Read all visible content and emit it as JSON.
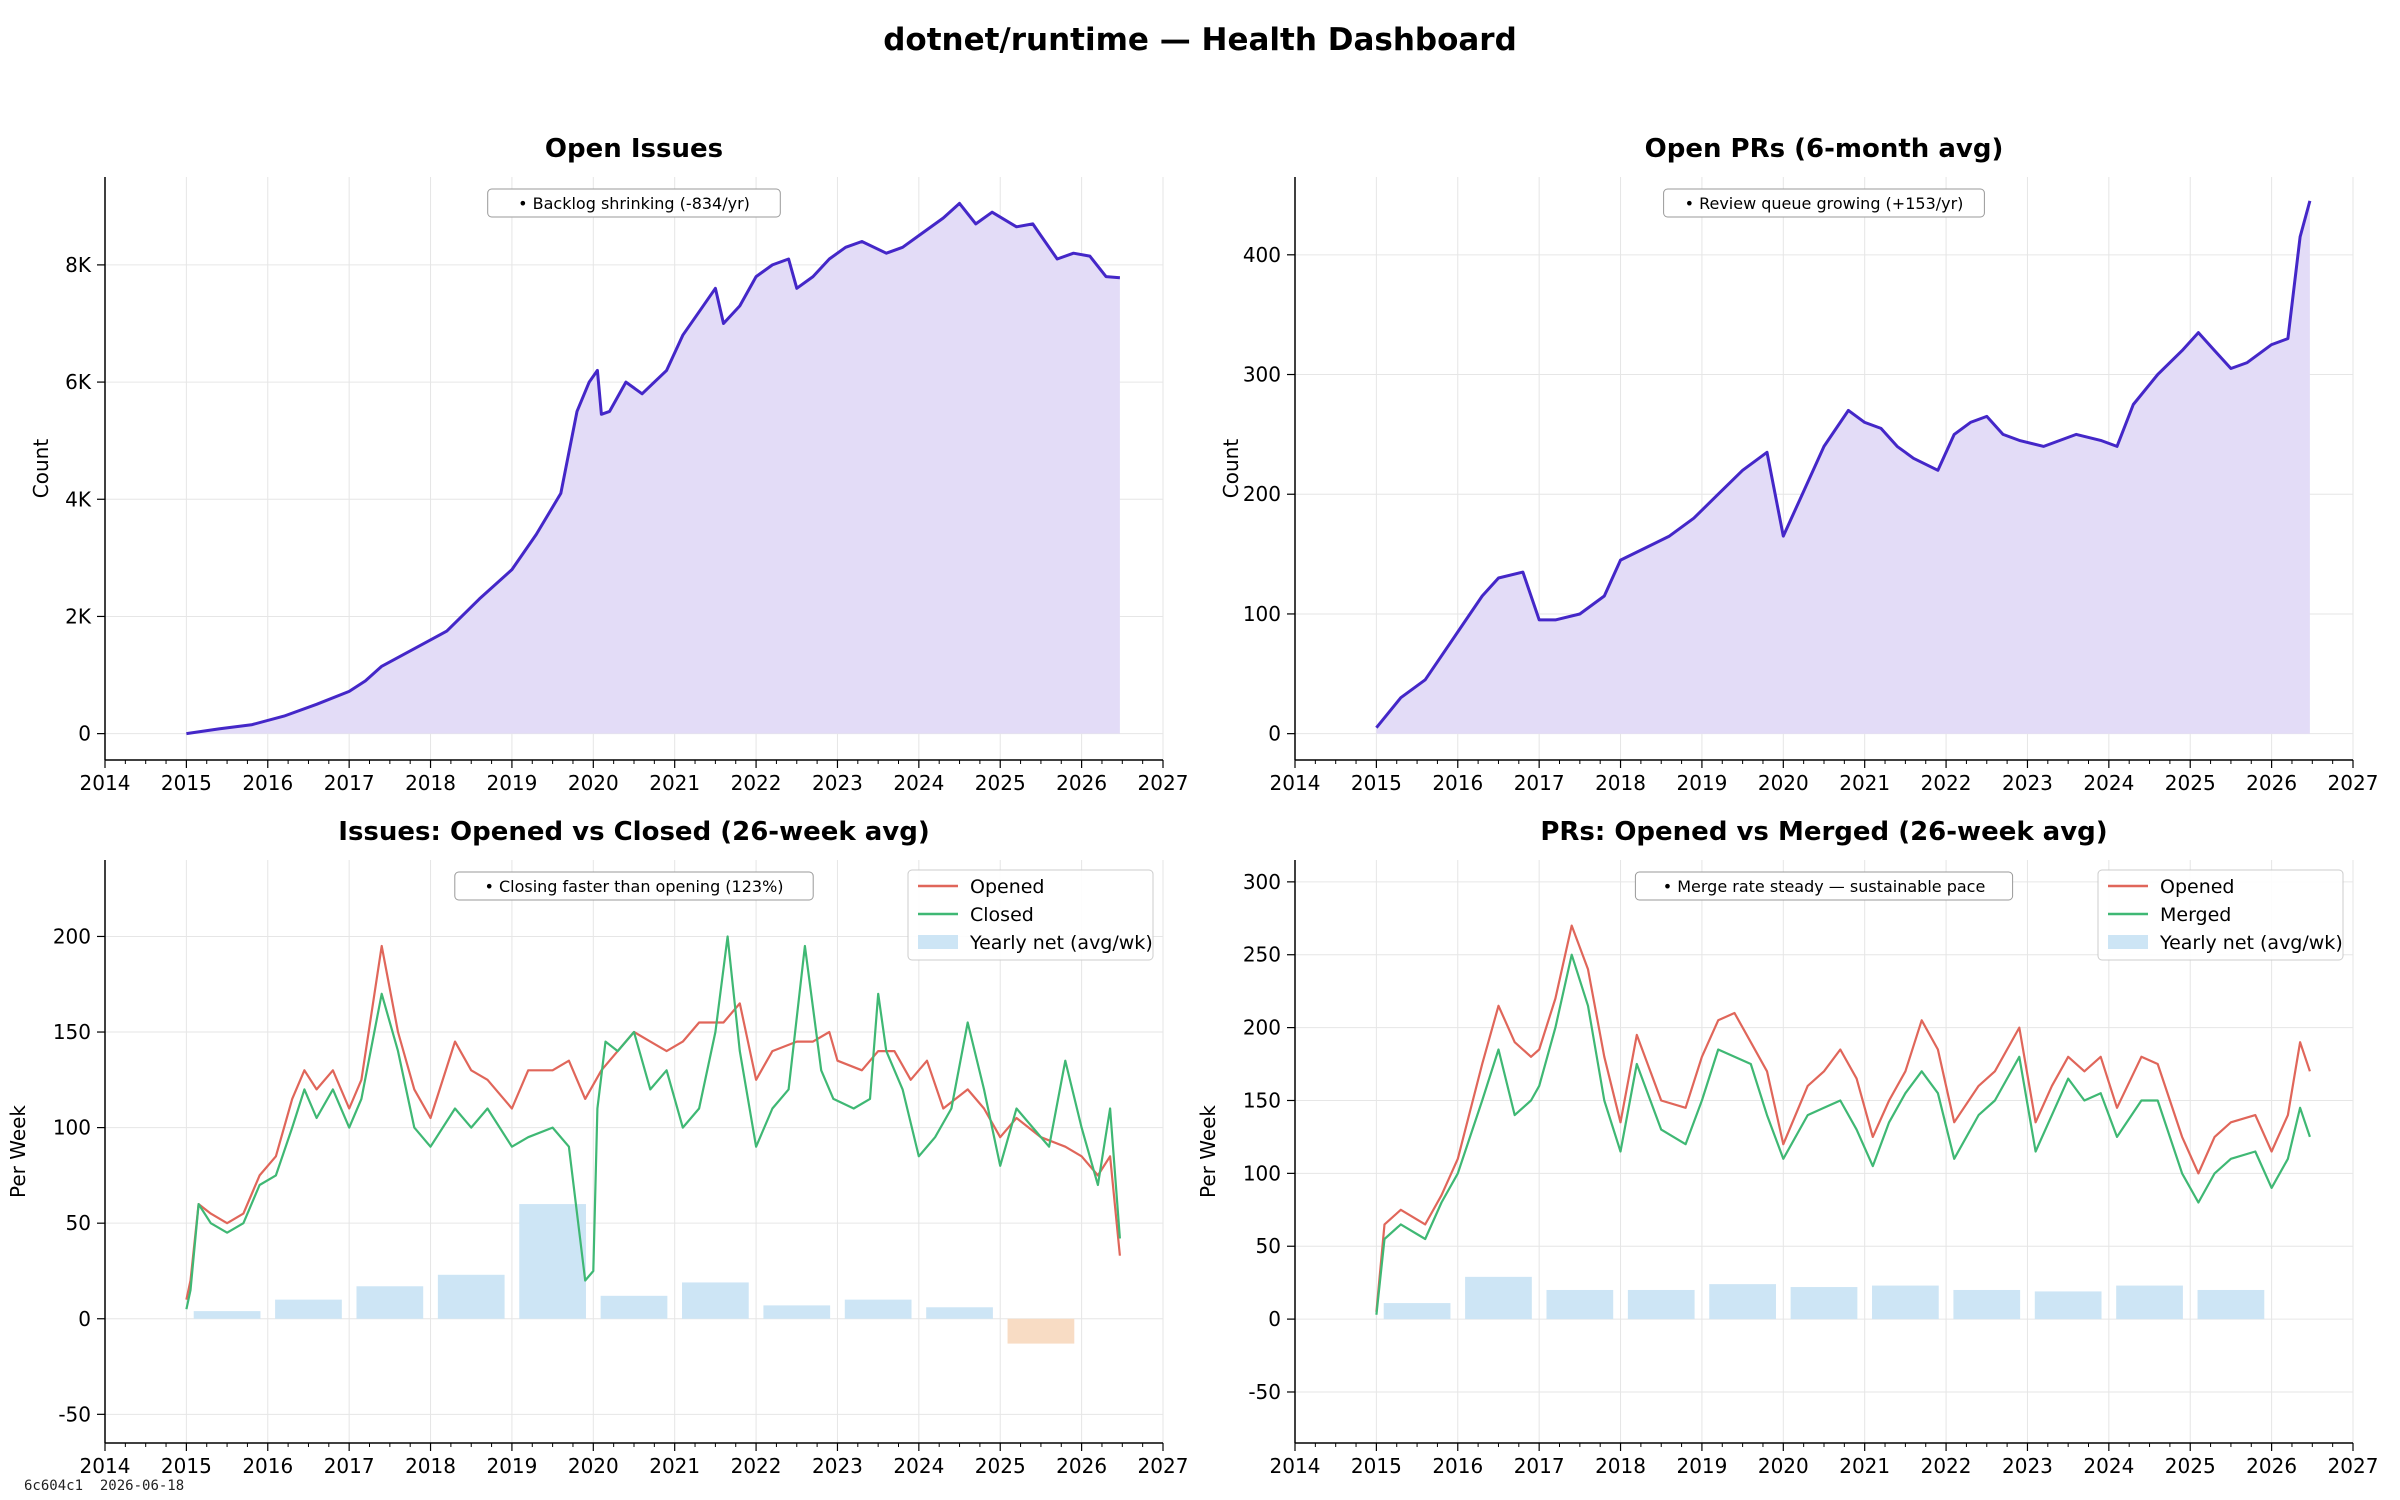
{
  "dashboard": {
    "title": "dotnet/runtime — Health Dashboard",
    "footer_hash": "6c604c1",
    "footer_date": "2026-06-18"
  },
  "colors": {
    "area_line": "#4427c8",
    "area_fill": "#e3dcf7",
    "opened": "#e0665a",
    "closed": "#3fb874",
    "bar_pos": "#cde5f5",
    "bar_neg": "#f8dcc4",
    "grid": "#e6e6e6"
  },
  "chart_data": [
    {
      "id": "open-issues",
      "type": "area",
      "title": "Open Issues",
      "xlabel": "",
      "ylabel": "Count",
      "xlim": [
        2014,
        2027
      ],
      "ylim": [
        -450,
        9500
      ],
      "xticks": [
        2014,
        2015,
        2016,
        2017,
        2018,
        2019,
        2020,
        2021,
        2022,
        2023,
        2024,
        2025,
        2026,
        2027
      ],
      "yticks": [
        {
          "v": 0,
          "label": "0"
        },
        {
          "v": 2000,
          "label": "2K"
        },
        {
          "v": 4000,
          "label": "4K"
        },
        {
          "v": 6000,
          "label": "6K"
        },
        {
          "v": 8000,
          "label": "8K"
        }
      ],
      "grid": true,
      "annotation": "• Backlog shrinking (-834/yr)",
      "series": [
        {
          "x": [
            2015.0,
            2015.4,
            2015.8,
            2016.2,
            2016.6,
            2017.0,
            2017.2,
            2017.4,
            2017.8,
            2018.2,
            2018.6,
            2019.0,
            2019.3,
            2019.6,
            2019.8,
            2019.95,
            2020.05,
            2020.1,
            2020.2,
            2020.4,
            2020.6,
            2020.9,
            2021.1,
            2021.3,
            2021.5,
            2021.6,
            2021.8,
            2022.0,
            2022.2,
            2022.4,
            2022.5,
            2022.7,
            2022.9,
            2023.1,
            2023.3,
            2023.6,
            2023.8,
            2024.0,
            2024.3,
            2024.5,
            2024.7,
            2024.9,
            2025.2,
            2025.4,
            2025.5,
            2025.7,
            2025.9,
            2026.1,
            2026.3,
            2026.47
          ],
          "y": [
            0,
            80,
            150,
            300,
            500,
            720,
            900,
            1150,
            1450,
            1750,
            2300,
            2800,
            3400,
            4100,
            5500,
            6000,
            6200,
            5450,
            5500,
            6000,
            5800,
            6200,
            6800,
            7200,
            7600,
            7000,
            7300,
            7800,
            8000,
            8100,
            7600,
            7800,
            8100,
            8300,
            8400,
            8200,
            8300,
            8500,
            8800,
            9050,
            8700,
            8900,
            8650,
            8700,
            8500,
            8100,
            8200,
            8150,
            7800,
            7780
          ]
        }
      ]
    },
    {
      "id": "open-prs",
      "type": "area",
      "title": "Open PRs (6-month avg)",
      "xlabel": "",
      "ylabel": "Count",
      "xlim": [
        2014,
        2027
      ],
      "ylim": [
        -22,
        465
      ],
      "xticks": [
        2014,
        2015,
        2016,
        2017,
        2018,
        2019,
        2020,
        2021,
        2022,
        2023,
        2024,
        2025,
        2026,
        2027
      ],
      "yticks": [
        {
          "v": 0,
          "label": "0"
        },
        {
          "v": 100,
          "label": "100"
        },
        {
          "v": 200,
          "label": "200"
        },
        {
          "v": 300,
          "label": "300"
        },
        {
          "v": 400,
          "label": "400"
        }
      ],
      "grid": true,
      "annotation": "• Review queue growing (+153/yr)",
      "series": [
        {
          "x": [
            2015.0,
            2015.3,
            2015.6,
            2016.0,
            2016.3,
            2016.5,
            2016.8,
            2017.0,
            2017.2,
            2017.5,
            2017.8,
            2018.0,
            2018.3,
            2018.6,
            2018.9,
            2019.2,
            2019.5,
            2019.8,
            2020.0,
            2020.2,
            2020.5,
            2020.8,
            2021.0,
            2021.2,
            2021.4,
            2021.6,
            2021.9,
            2022.1,
            2022.3,
            2022.5,
            2022.7,
            2022.9,
            2023.2,
            2023.4,
            2023.6,
            2023.9,
            2024.1,
            2024.3,
            2024.6,
            2024.9,
            2025.1,
            2025.3,
            2025.5,
            2025.7,
            2026.0,
            2026.2,
            2026.35,
            2026.47
          ],
          "y": [
            5,
            30,
            45,
            85,
            115,
            130,
            135,
            95,
            95,
            100,
            115,
            145,
            155,
            165,
            180,
            200,
            220,
            235,
            165,
            195,
            240,
            270,
            260,
            255,
            240,
            230,
            220,
            250,
            260,
            265,
            250,
            245,
            240,
            245,
            250,
            245,
            240,
            275,
            300,
            320,
            335,
            320,
            305,
            310,
            325,
            330,
            415,
            445
          ]
        }
      ]
    },
    {
      "id": "issues-opened-closed",
      "type": "line",
      "title": "Issues: Opened vs Closed (26-week avg)",
      "xlabel": "",
      "ylabel": "Per Week",
      "xlim": [
        2014,
        2027
      ],
      "ylim": [
        -65,
        240
      ],
      "xticks": [
        2014,
        2015,
        2016,
        2017,
        2018,
        2019,
        2020,
        2021,
        2022,
        2023,
        2024,
        2025,
        2026,
        2027
      ],
      "yticks": [
        {
          "v": -50,
          "label": "-50"
        },
        {
          "v": 0,
          "label": "0"
        },
        {
          "v": 50,
          "label": "50"
        },
        {
          "v": 100,
          "label": "100"
        },
        {
          "v": 150,
          "label": "150"
        },
        {
          "v": 200,
          "label": "200"
        }
      ],
      "grid": true,
      "legend": "top-right",
      "annotation": "• Closing faster than opening (123%)",
      "series": [
        {
          "name": "Opened",
          "kind": "line",
          "x": [
            2015.0,
            2015.05,
            2015.15,
            2015.3,
            2015.5,
            2015.7,
            2015.9,
            2016.1,
            2016.3,
            2016.45,
            2016.6,
            2016.8,
            2017.0,
            2017.15,
            2017.4,
            2017.6,
            2017.8,
            2018.0,
            2018.3,
            2018.5,
            2018.7,
            2019.0,
            2019.2,
            2019.5,
            2019.7,
            2019.9,
            2020.1,
            2020.3,
            2020.5,
            2020.7,
            2020.9,
            2021.1,
            2021.3,
            2021.6,
            2021.8,
            2022.0,
            2022.2,
            2022.5,
            2022.7,
            2022.9,
            2023.0,
            2023.3,
            2023.5,
            2023.7,
            2023.9,
            2024.1,
            2024.3,
            2024.6,
            2024.8,
            2025.0,
            2025.2,
            2025.5,
            2025.8,
            2026.0,
            2026.2,
            2026.35,
            2026.47
          ],
          "y": [
            10,
            20,
            60,
            55,
            50,
            55,
            75,
            85,
            115,
            130,
            120,
            130,
            110,
            125,
            195,
            150,
            120,
            105,
            145,
            130,
            125,
            110,
            130,
            130,
            135,
            115,
            130,
            140,
            150,
            145,
            140,
            145,
            155,
            155,
            165,
            125,
            140,
            145,
            145,
            150,
            135,
            130,
            140,
            140,
            125,
            135,
            110,
            120,
            110,
            95,
            105,
            95,
            90,
            85,
            75,
            85,
            33
          ]
        },
        {
          "name": "Closed",
          "kind": "line",
          "x": [
            2015.0,
            2015.05,
            2015.15,
            2015.3,
            2015.5,
            2015.7,
            2015.9,
            2016.1,
            2016.3,
            2016.45,
            2016.6,
            2016.8,
            2017.0,
            2017.15,
            2017.4,
            2017.6,
            2017.8,
            2018.0,
            2018.3,
            2018.5,
            2018.7,
            2019.0,
            2019.2,
            2019.5,
            2019.7,
            2019.9,
            2020.0,
            2020.05,
            2020.15,
            2020.3,
            2020.5,
            2020.7,
            2020.9,
            2021.1,
            2021.3,
            2021.5,
            2021.65,
            2021.8,
            2022.0,
            2022.2,
            2022.4,
            2022.6,
            2022.8,
            2022.95,
            2023.2,
            2023.4,
            2023.5,
            2023.6,
            2023.8,
            2024.0,
            2024.2,
            2024.4,
            2024.6,
            2024.8,
            2025.0,
            2025.2,
            2025.4,
            2025.6,
            2025.8,
            2026.0,
            2026.2,
            2026.35,
            2026.47
          ],
          "y": [
            5,
            15,
            60,
            50,
            45,
            50,
            70,
            75,
            100,
            120,
            105,
            120,
            100,
            115,
            170,
            140,
            100,
            90,
            110,
            100,
            110,
            90,
            95,
            100,
            90,
            20,
            25,
            110,
            145,
            140,
            150,
            120,
            130,
            100,
            110,
            150,
            200,
            140,
            90,
            110,
            120,
            195,
            130,
            115,
            110,
            115,
            170,
            140,
            120,
            85,
            95,
            110,
            155,
            120,
            80,
            110,
            100,
            90,
            135,
            100,
            70,
            110,
            42
          ]
        },
        {
          "name": "Yearly net (avg/wk)",
          "kind": "bar",
          "x": [
            2015.5,
            2016.5,
            2017.5,
            2018.5,
            2019.5,
            2020.5,
            2021.5,
            2022.5,
            2023.5,
            2024.5,
            2025.5
          ],
          "y": [
            4,
            10,
            17,
            23,
            60,
            12,
            19,
            7,
            10,
            6,
            -13
          ]
        }
      ]
    },
    {
      "id": "prs-opened-merged",
      "type": "line",
      "title": "PRs: Opened vs Merged (26-week avg)",
      "xlabel": "",
      "ylabel": "Per Week",
      "xlim": [
        2014,
        2027
      ],
      "ylim": [
        -85,
        315
      ],
      "xticks": [
        2014,
        2015,
        2016,
        2017,
        2018,
        2019,
        2020,
        2021,
        2022,
        2023,
        2024,
        2025,
        2026,
        2027
      ],
      "yticks": [
        {
          "v": -50,
          "label": "-50"
        },
        {
          "v": 0,
          "label": "0"
        },
        {
          "v": 50,
          "label": "50"
        },
        {
          "v": 100,
          "label": "100"
        },
        {
          "v": 150,
          "label": "150"
        },
        {
          "v": 200,
          "label": "200"
        },
        {
          "v": 250,
          "label": "250"
        },
        {
          "v": 300,
          "label": "300"
        }
      ],
      "grid": true,
      "legend": "top-right",
      "annotation": "• Merge rate steady — sustainable pace",
      "series": [
        {
          "name": "Opened",
          "kind": "line",
          "x": [
            2015.0,
            2015.1,
            2015.3,
            2015.6,
            2015.8,
            2016.0,
            2016.3,
            2016.5,
            2016.7,
            2016.9,
            2017.0,
            2017.2,
            2017.4,
            2017.6,
            2017.8,
            2018.0,
            2018.2,
            2018.5,
            2018.8,
            2019.0,
            2019.2,
            2019.4,
            2019.6,
            2019.8,
            2020.0,
            2020.3,
            2020.5,
            2020.7,
            2020.9,
            2021.1,
            2021.3,
            2021.5,
            2021.7,
            2021.9,
            2022.1,
            2022.4,
            2022.6,
            2022.9,
            2023.1,
            2023.3,
            2023.5,
            2023.7,
            2023.9,
            2024.1,
            2024.4,
            2024.6,
            2024.9,
            2025.1,
            2025.3,
            2025.5,
            2025.8,
            2026.0,
            2026.2,
            2026.35,
            2026.47
          ],
          "y": [
            5,
            65,
            75,
            65,
            85,
            110,
            175,
            215,
            190,
            180,
            185,
            220,
            270,
            240,
            180,
            135,
            195,
            150,
            145,
            180,
            205,
            210,
            190,
            170,
            120,
            160,
            170,
            185,
            165,
            125,
            150,
            170,
            205,
            185,
            135,
            160,
            170,
            200,
            135,
            160,
            180,
            170,
            180,
            145,
            180,
            175,
            125,
            100,
            125,
            135,
            140,
            115,
            140,
            190,
            170
          ]
        },
        {
          "name": "Merged",
          "kind": "line",
          "x": [
            2015.0,
            2015.1,
            2015.3,
            2015.6,
            2015.8,
            2016.0,
            2016.3,
            2016.5,
            2016.7,
            2016.9,
            2017.0,
            2017.2,
            2017.4,
            2017.6,
            2017.8,
            2018.0,
            2018.2,
            2018.5,
            2018.8,
            2019.0,
            2019.2,
            2019.4,
            2019.6,
            2019.8,
            2020.0,
            2020.3,
            2020.5,
            2020.7,
            2020.9,
            2021.1,
            2021.3,
            2021.5,
            2021.7,
            2021.9,
            2022.1,
            2022.4,
            2022.6,
            2022.9,
            2023.1,
            2023.3,
            2023.5,
            2023.7,
            2023.9,
            2024.1,
            2024.4,
            2024.6,
            2024.9,
            2025.1,
            2025.3,
            2025.5,
            2025.8,
            2026.0,
            2026.2,
            2026.35,
            2026.47
          ],
          "y": [
            3,
            55,
            65,
            55,
            80,
            100,
            150,
            185,
            140,
            150,
            160,
            200,
            250,
            215,
            150,
            115,
            175,
            130,
            120,
            150,
            185,
            180,
            175,
            140,
            110,
            140,
            145,
            150,
            130,
            105,
            135,
            155,
            170,
            155,
            110,
            140,
            150,
            180,
            115,
            140,
            165,
            150,
            155,
            125,
            150,
            150,
            100,
            80,
            100,
            110,
            115,
            90,
            110,
            145,
            125
          ]
        },
        {
          "name": "Yearly net (avg/wk)",
          "kind": "bar",
          "x": [
            2015.5,
            2016.5,
            2017.5,
            2018.5,
            2019.5,
            2020.5,
            2021.5,
            2022.5,
            2023.5,
            2024.5,
            2025.5
          ],
          "y": [
            11,
            29,
            20,
            20,
            24,
            22,
            23,
            20,
            19,
            23,
            20
          ]
        }
      ]
    }
  ]
}
